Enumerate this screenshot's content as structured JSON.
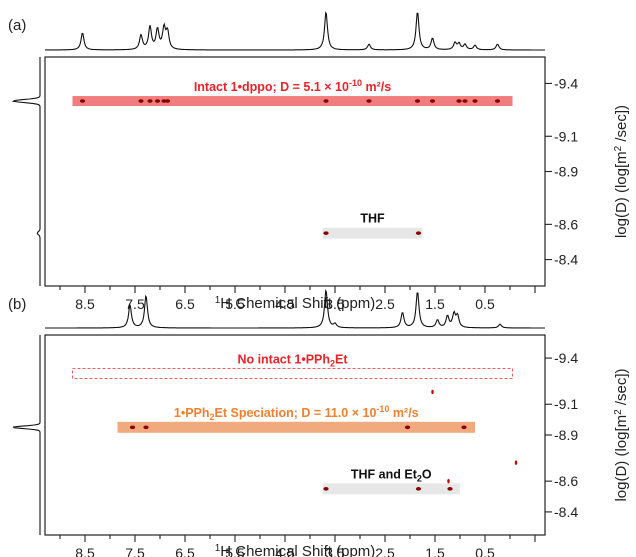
{
  "chart_data": [
    {
      "type": "heatmap",
      "panel": "(a)",
      "xlabel_sup": "1",
      "xlabel": "H Chemical Shift (ppm)",
      "ylabel_main": "log(D) (log[m",
      "ylabel_sup": "2",
      "ylabel_end": " /sec])",
      "x_ticks": [
        "8.5",
        "7.5",
        "6.5",
        "5.5",
        "4.5",
        "3.5",
        "2.5",
        "1.5",
        "0.5"
      ],
      "y_ticks": [
        "-9.4",
        "-9.1",
        "-8.9",
        "-8.6",
        "-8.4"
      ],
      "xlim": [
        9.3,
        -0.7
      ],
      "ylim": [
        -9.55,
        -8.25
      ],
      "bands": [
        {
          "label": "Intact 1•dppo; D = 5.1 × 10",
          "label_sup": "-10",
          "label_end": " m²/s",
          "color": "#f07070",
          "text_color": "#e8242a",
          "style": "filled",
          "x_range": [
            8.75,
            -0.05
          ],
          "logD": -9.3,
          "peaks_ppm": [
            8.55,
            7.38,
            7.2,
            7.05,
            6.92,
            6.85,
            3.68,
            2.82,
            1.85,
            1.55,
            1.02,
            0.9,
            0.7,
            0.25
          ]
        },
        {
          "label": "THF",
          "color": "#e4e4e4",
          "text_color": "#111111",
          "style": "filled",
          "x_range": [
            3.75,
            1.75
          ],
          "logD": -8.55,
          "peaks_ppm": [
            3.68,
            1.83
          ]
        }
      ],
      "proj_1h_peaks": [
        [
          8.55,
          0.45
        ],
        [
          7.38,
          0.38
        ],
        [
          7.2,
          0.6
        ],
        [
          7.05,
          0.52
        ],
        [
          6.92,
          0.55
        ],
        [
          6.85,
          0.45
        ],
        [
          3.68,
          1.0
        ],
        [
          2.82,
          0.15
        ],
        [
          1.85,
          1.0
        ],
        [
          1.55,
          0.3
        ],
        [
          1.1,
          0.18
        ],
        [
          1.02,
          0.16
        ],
        [
          0.9,
          0.14
        ],
        [
          0.7,
          0.12
        ],
        [
          0.25,
          0.15
        ]
      ],
      "proj_dosy_peaks": [
        [
          -9.3,
          1.0
        ],
        [
          -8.55,
          0.1
        ]
      ]
    },
    {
      "type": "heatmap",
      "panel": "(b)",
      "xlabel_sup": "1",
      "xlabel": "H Chemical Shift (ppm)",
      "ylabel_main": "log(D) (log[m",
      "ylabel_sup": "2",
      "ylabel_end": " /sec])",
      "x_ticks": [
        "8.5",
        "7.5",
        "6.5",
        "5.5",
        "4.5",
        "3.5",
        "2.5",
        "1.5",
        "0.5"
      ],
      "y_ticks": [
        "-9.4",
        "-9.1",
        "-8.9",
        "-8.6",
        "-8.4"
      ],
      "xlim": [
        9.3,
        -0.7
      ],
      "ylim": [
        -9.55,
        -8.25
      ],
      "bands": [
        {
          "label": "No intact 1•PPh",
          "label_sub": "2",
          "label_end": "Et",
          "color": "#f06060",
          "text_color": "#e8242a",
          "style": "dashed",
          "x_range": [
            8.75,
            -0.05
          ],
          "logD": -9.3,
          "peaks_ppm": []
        },
        {
          "label": "1•PPh",
          "label_sub": "2",
          "label_mid": "Et Speciation; D = 11.0 × 10",
          "label_sup": "-10",
          "label_end": " m²/s",
          "color": "#f0a070",
          "text_color": "#f08030",
          "style": "filled",
          "x_range": [
            7.85,
            0.7
          ],
          "logD": -8.95,
          "peaks_ppm": [
            7.55,
            7.28,
            2.05,
            0.92
          ]
        },
        {
          "label": "THF and Et",
          "label_sub": "2",
          "label_end": "O",
          "color": "#e4e4e4",
          "text_color": "#111111",
          "style": "filled",
          "x_range": [
            3.75,
            1.0
          ],
          "logD": -8.55,
          "peaks_ppm": [
            3.68,
            1.83,
            1.2
          ]
        }
      ],
      "stray_peaks": [
        [
          1.55,
          -9.18
        ],
        [
          -0.12,
          -8.72
        ],
        [
          1.23,
          -8.6
        ]
      ],
      "proj_1h_peaks": [
        [
          7.6,
          0.6
        ],
        [
          7.28,
          0.85
        ],
        [
          3.68,
          1.0
        ],
        [
          3.5,
          0.1
        ],
        [
          2.15,
          0.4
        ],
        [
          1.85,
          0.95
        ],
        [
          1.45,
          0.2
        ],
        [
          1.25,
          0.3
        ],
        [
          1.12,
          0.35
        ],
        [
          1.05,
          0.3
        ],
        [
          0.2,
          0.1
        ]
      ],
      "proj_dosy_peaks": [
        [
          -8.95,
          1.0
        ]
      ]
    }
  ]
}
